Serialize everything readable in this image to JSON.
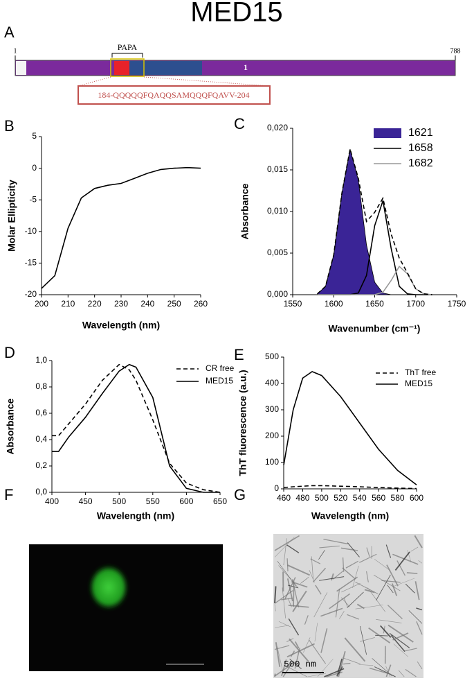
{
  "title": "MED15",
  "panel_labels": [
    "A",
    "B",
    "C",
    "D",
    "E",
    "F",
    "G"
  ],
  "protein": {
    "start_label": "1",
    "end_label": "788",
    "region_label": "PAPA",
    "domain_label": "1",
    "sequence": "184-QQQQQFQAQQSAMQQQFQAVV-204"
  },
  "micrograph": {
    "scale_label": "500 nm"
  },
  "chart_data": [
    {
      "type": "line",
      "xlabel": "Wavelength (nm)",
      "ylabel": "Molar Ellipticity",
      "x": [
        200,
        205,
        210,
        215,
        220,
        225,
        230,
        235,
        240,
        245,
        250,
        255,
        260
      ],
      "series": [
        {
          "color": "#000000",
          "values": [
            -19,
            -17,
            -9.5,
            -4.7,
            -3.2,
            -2.7,
            -2.4,
            -1.6,
            -0.8,
            -0.2,
            0,
            0.1,
            0
          ]
        }
      ],
      "xlim": [
        200,
        260
      ],
      "xticks": [
        200,
        210,
        220,
        230,
        240,
        250,
        260
      ],
      "ylim": [
        -20,
        5
      ],
      "yticks": [
        -20,
        -15,
        -10,
        -5,
        0,
        5
      ]
    },
    {
      "type": "line",
      "xlabel": "Wavenumber (cm⁻¹)",
      "ylabel": "Absorbance",
      "legend": "upper right",
      "x": [
        1580,
        1590,
        1600,
        1610,
        1620,
        1630,
        1640,
        1650,
        1660,
        1670,
        1680,
        1690,
        1700,
        1710,
        1720
      ],
      "series": [
        {
          "name": "1621",
          "color": "#3a2496",
          "fill": true,
          "values": [
            0.0001,
            0.001,
            0.0048,
            0.0122,
            0.0175,
            0.0138,
            0.006,
            0.0015,
            0.0002,
            0,
            0,
            0,
            0,
            0,
            0
          ]
        },
        {
          "name": "1658",
          "color": "#000000",
          "values": [
            0,
            0,
            0,
            0,
            0,
            0.0002,
            0.0023,
            0.0083,
            0.0113,
            0.0056,
            0.001,
            0.0001,
            0,
            0,
            0
          ]
        },
        {
          "name": "1682",
          "color": "#999999",
          "values": [
            0,
            0,
            0,
            0,
            0,
            0,
            0,
            0,
            0.0003,
            0.0017,
            0.0034,
            0.0025,
            0.0007,
            0.0001,
            0
          ]
        },
        {
          "color": "#000000",
          "dash": true,
          "values": [
            0.0001,
            0.001,
            0.0048,
            0.0122,
            0.0175,
            0.014,
            0.0088,
            0.0099,
            0.0116,
            0.0073,
            0.0044,
            0.0026,
            0.0007,
            0.0001,
            0
          ]
        }
      ],
      "xlim": [
        1550,
        1750
      ],
      "xticks": [
        1550,
        1600,
        1650,
        1700,
        1750
      ],
      "ylim": [
        0,
        0.02
      ],
      "yticks": [
        {
          "value": 0,
          "label": "0,000"
        },
        {
          "value": 0.005,
          "label": "0,005"
        },
        {
          "value": 0.01,
          "label": "0,010"
        },
        {
          "value": 0.015,
          "label": "0,015"
        },
        {
          "value": 0.02,
          "label": "0,020"
        }
      ]
    },
    {
      "type": "line",
      "xlabel": "Wavelength (nm)",
      "ylabel": "Absorbance",
      "legend": "upper right",
      "x": [
        400,
        410,
        425,
        450,
        475,
        500,
        515,
        525,
        550,
        575,
        600,
        625,
        650
      ],
      "series": [
        {
          "name": "CR free",
          "color": "#000000",
          "dash": true,
          "values": [
            0.43,
            0.43,
            0.52,
            0.67,
            0.85,
            0.97,
            0.93,
            0.85,
            0.55,
            0.22,
            0.07,
            0.02,
            0
          ]
        },
        {
          "name": "MED15",
          "color": "#000000",
          "values": [
            0.31,
            0.31,
            0.42,
            0.57,
            0.75,
            0.92,
            0.97,
            0.95,
            0.72,
            0.2,
            0.03,
            0,
            0
          ]
        }
      ],
      "xlim": [
        400,
        650
      ],
      "xticks": [
        400,
        450,
        500,
        550,
        600,
        650
      ],
      "ylim": [
        0,
        1
      ],
      "yticks": [
        {
          "value": 0,
          "label": "0,0"
        },
        {
          "value": 0.2,
          "label": "0,2"
        },
        {
          "value": 0.4,
          "label": "0,4"
        },
        {
          "value": 0.6,
          "label": "0,6"
        },
        {
          "value": 0.8,
          "label": "0,8"
        },
        {
          "value": 1,
          "label": "1,0"
        }
      ]
    },
    {
      "type": "line",
      "xlabel": "Wavelength (nm)",
      "ylabel": "ThT fluorescence (a.u.)",
      "legend": "upper right",
      "x": [
        460,
        470,
        480,
        490,
        500,
        520,
        540,
        560,
        580,
        600
      ],
      "series": [
        {
          "name": "ThT free",
          "color": "#000000",
          "dash": true,
          "values": [
            5,
            8,
            10,
            12,
            12,
            10,
            8,
            5,
            3,
            1
          ]
        },
        {
          "name": "MED15",
          "color": "#000000",
          "values": [
            90,
            300,
            420,
            445,
            430,
            350,
            250,
            150,
            70,
            15
          ]
        }
      ],
      "xlim": [
        460,
        600
      ],
      "xticks": [
        460,
        480,
        500,
        520,
        540,
        560,
        580,
        600
      ],
      "ylim": [
        0,
        500
      ],
      "yticks": [
        0,
        100,
        200,
        300,
        400,
        500
      ]
    }
  ]
}
